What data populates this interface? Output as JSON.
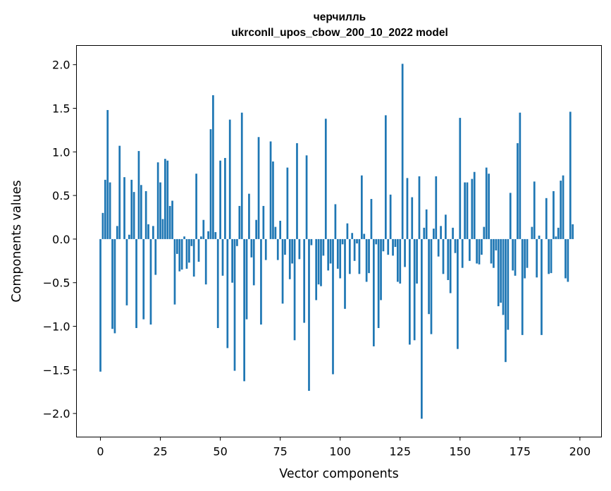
{
  "chart_data": {
    "type": "bar",
    "title_line1": "черчилль",
    "title_line2": "ukrconll_upos_cbow_200_10_2022 model",
    "xlabel": "Vector components",
    "ylabel": "Components values",
    "xlim": [
      -10,
      209
    ],
    "ylim": [
      -2.27,
      2.22
    ],
    "xticks": [
      0,
      25,
      50,
      75,
      100,
      125,
      150,
      175,
      200
    ],
    "yticks": [
      -2.0,
      -1.5,
      -1.0,
      -0.5,
      0.0,
      0.5,
      1.0,
      1.5,
      2.0
    ],
    "ytick_labels": [
      "−2.0",
      "−1.5",
      "−1.0",
      "−0.5",
      "0.0",
      "0.5",
      "1.0",
      "1.5",
      "2.0"
    ],
    "bar_color": "#1f77b4",
    "values": [
      -1.52,
      0.3,
      0.68,
      1.48,
      0.65,
      -1.03,
      -1.08,
      0.15,
      1.07,
      0.0,
      0.71,
      -0.76,
      0.05,
      0.68,
      0.54,
      -1.02,
      1.01,
      0.62,
      -0.92,
      0.55,
      0.17,
      -0.98,
      0.15,
      -0.41,
      0.88,
      0.65,
      0.23,
      0.92,
      0.9,
      0.38,
      0.44,
      -0.75,
      -0.17,
      -0.37,
      -0.35,
      0.03,
      -0.34,
      -0.27,
      -0.08,
      -0.43,
      0.75,
      -0.26,
      0.03,
      0.22,
      -0.52,
      0.09,
      1.26,
      1.65,
      0.08,
      -1.02,
      0.9,
      -0.42,
      0.93,
      -1.25,
      1.37,
      -0.5,
      -1.51,
      -0.08,
      0.38,
      1.45,
      -1.63,
      -0.92,
      0.52,
      -0.21,
      -0.53,
      0.22,
      1.17,
      -0.98,
      0.38,
      -0.24,
      0.0,
      1.12,
      0.89,
      0.14,
      -0.24,
      0.21,
      -0.74,
      -0.18,
      0.82,
      -0.46,
      -0.28,
      -1.16,
      1.1,
      -0.23,
      0.0,
      -0.96,
      0.96,
      -1.74,
      -0.07,
      0.0,
      -0.7,
      -0.52,
      -0.54,
      -0.19,
      1.38,
      -0.36,
      -0.28,
      -1.55,
      0.4,
      -0.34,
      -0.45,
      -0.06,
      -0.8,
      0.18,
      -0.4,
      0.07,
      -0.25,
      -0.05,
      -0.4,
      0.73,
      0.06,
      -0.49,
      -0.39,
      0.46,
      -1.23,
      -0.06,
      -1.02,
      -0.7,
      -0.14,
      1.42,
      -0.18,
      0.51,
      -0.19,
      -0.09,
      -0.49,
      -0.51,
      2.01,
      -0.32,
      0.7,
      -1.21,
      0.48,
      -1.16,
      -0.51,
      0.72,
      -2.06,
      0.13,
      0.34,
      -0.86,
      -1.09,
      0.12,
      0.72,
      -0.2,
      0.15,
      -0.4,
      0.28,
      -0.47,
      -0.62,
      0.13,
      -0.16,
      -1.26,
      1.39,
      -0.33,
      0.65,
      0.65,
      -0.25,
      0.69,
      0.77,
      -0.28,
      -0.29,
      -0.18,
      0.14,
      0.82,
      0.75,
      -0.28,
      -0.33,
      -0.13,
      -0.77,
      -0.73,
      -0.87,
      -1.41,
      -1.04,
      0.53,
      -0.36,
      -0.42,
      1.1,
      1.45,
      -1.1,
      -0.45,
      -0.33,
      0.0,
      0.14,
      0.66,
      -0.44,
      0.04,
      -1.1,
      0.0,
      0.47,
      -0.4,
      -0.39,
      0.55,
      0.03,
      0.13,
      0.67,
      0.73,
      -0.45,
      -0.49,
      1.46,
      0.17
    ]
  }
}
